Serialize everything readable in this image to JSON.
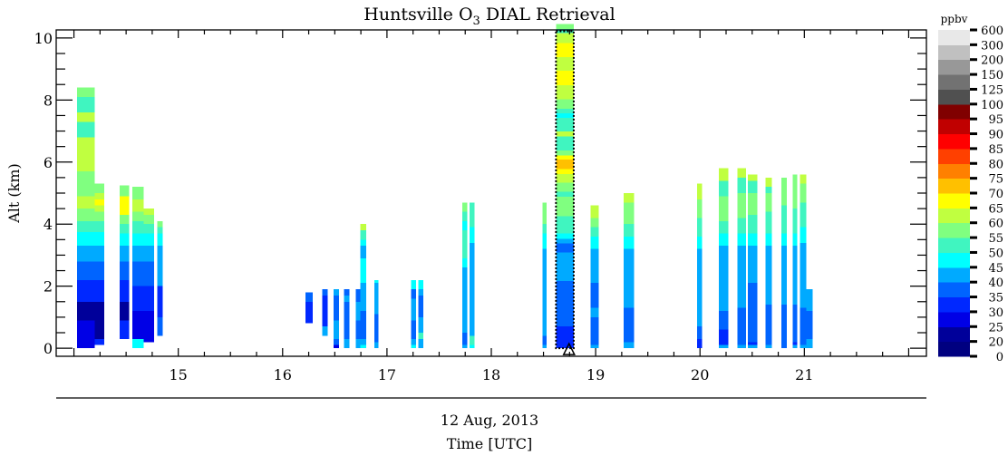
{
  "chart_data": {
    "type": "heatmap",
    "title_prefix": "Huntsville O",
    "title_sub": "3",
    "title_suffix": " DIAL Retrieval",
    "ylabel": "Alt (km)",
    "xlabel_date": "12 Aug, 2013",
    "xlabel": "Time [UTC]",
    "xlim": [
      13.83,
      22.17
    ],
    "ylim": [
      -0.26,
      10.26
    ],
    "x_ticks": [
      15,
      16,
      17,
      18,
      19,
      20,
      21
    ],
    "y_ticks": [
      0,
      2,
      4,
      6,
      8,
      10
    ],
    "colorbar": {
      "unit": "ppbv",
      "bounds": [
        0,
        20,
        25,
        30,
        35,
        40,
        45,
        50,
        55,
        60,
        65,
        70,
        75,
        80,
        85,
        90,
        95,
        100,
        125,
        150,
        200,
        300,
        600
      ],
      "colors": [
        "#000080",
        "#00009a",
        "#0000e6",
        "#0028ff",
        "#0064ff",
        "#00aaff",
        "#00ffff",
        "#40f5c0",
        "#80ff80",
        "#c0ff40",
        "#ffff00",
        "#ffc000",
        "#ff8000",
        "#ff4000",
        "#ff0000",
        "#c00000",
        "#800000",
        "#505050",
        "#727272",
        "#989898",
        "#c0c0c0",
        "#e8e8e8"
      ]
    },
    "highlight": {
      "t0": 18.62,
      "t1": 18.79,
      "marker_time": 18.745
    },
    "profiles": [
      {
        "t0": 14.03,
        "t1": 14.2,
        "bottom": 0,
        "layers": [
          [
            0.3,
            25
          ],
          [
            0.9,
            25
          ],
          [
            1.5,
            20
          ],
          [
            2.2,
            30
          ],
          [
            2.8,
            35
          ],
          [
            3.3,
            40
          ],
          [
            3.75,
            45
          ],
          [
            4.1,
            50
          ],
          [
            4.5,
            55
          ],
          [
            4.9,
            60
          ],
          [
            5.7,
            55
          ],
          [
            6.8,
            60
          ],
          [
            7.3,
            50
          ],
          [
            7.6,
            60
          ],
          [
            8.1,
            50
          ],
          [
            8.4,
            55
          ]
        ]
      },
      {
        "t0": 14.2,
        "t1": 14.29,
        "bottom": 0.1,
        "layers": [
          [
            0.3,
            30
          ],
          [
            1.5,
            20
          ],
          [
            2.2,
            30
          ],
          [
            2.8,
            35
          ],
          [
            3.3,
            40
          ],
          [
            3.75,
            45
          ],
          [
            4.1,
            50
          ],
          [
            4.4,
            55
          ],
          [
            4.6,
            60
          ],
          [
            4.8,
            65
          ],
          [
            5.0,
            60
          ],
          [
            5.3,
            55
          ]
        ]
      },
      {
        "t0": 14.44,
        "t1": 14.53,
        "bottom": 0.3,
        "layers": [
          [
            0.9,
            30
          ],
          [
            1.5,
            20
          ],
          [
            2.2,
            30
          ],
          [
            2.8,
            35
          ],
          [
            3.3,
            40
          ],
          [
            3.7,
            45
          ],
          [
            4.0,
            50
          ],
          [
            4.3,
            55
          ],
          [
            4.9,
            65
          ],
          [
            5.25,
            55
          ]
        ]
      },
      {
        "t0": 14.56,
        "t1": 14.67,
        "bottom": 0,
        "layers": [
          [
            0.3,
            45
          ],
          [
            1.2,
            25
          ],
          [
            2.0,
            30
          ],
          [
            2.8,
            35
          ],
          [
            3.3,
            40
          ],
          [
            3.7,
            45
          ],
          [
            4.1,
            50
          ],
          [
            4.4,
            55
          ],
          [
            4.8,
            60
          ],
          [
            5.2,
            55
          ]
        ]
      },
      {
        "t0": 14.67,
        "t1": 14.77,
        "bottom": 0.2,
        "layers": [
          [
            1.2,
            25
          ],
          [
            2.0,
            30
          ],
          [
            2.8,
            35
          ],
          [
            3.3,
            40
          ],
          [
            3.7,
            45
          ],
          [
            4.0,
            50
          ],
          [
            4.3,
            55
          ],
          [
            4.5,
            60
          ]
        ]
      },
      {
        "t0": 14.8,
        "t1": 14.85,
        "bottom": 0.4,
        "layers": [
          [
            1.0,
            35
          ],
          [
            2.0,
            30
          ],
          [
            3.3,
            40
          ],
          [
            3.7,
            45
          ],
          [
            3.9,
            50
          ],
          [
            4.1,
            55
          ]
        ]
      },
      {
        "t0": 16.22,
        "t1": 16.29,
        "bottom": 0.8,
        "layers": [
          [
            1.5,
            30
          ],
          [
            1.8,
            35
          ]
        ]
      },
      {
        "t0": 16.38,
        "t1": 16.43,
        "bottom": 0.4,
        "layers": [
          [
            0.7,
            40
          ],
          [
            1.7,
            30
          ],
          [
            1.9,
            35
          ]
        ]
      },
      {
        "t0": 16.49,
        "t1": 16.54,
        "bottom": 0,
        "layers": [
          [
            0.1,
            25
          ],
          [
            0.3,
            35
          ],
          [
            0.9,
            40
          ],
          [
            1.7,
            35
          ],
          [
            1.9,
            40
          ]
        ]
      },
      {
        "t0": 16.59,
        "t1": 16.64,
        "bottom": 0,
        "layers": [
          [
            0.3,
            40
          ],
          [
            1.5,
            35
          ],
          [
            1.7,
            40
          ],
          [
            1.9,
            35
          ]
        ]
      },
      {
        "t0": 16.7,
        "t1": 16.745,
        "bottom": 0,
        "layers": [
          [
            0.3,
            40
          ],
          [
            0.9,
            35
          ],
          [
            1.5,
            40
          ],
          [
            1.9,
            35
          ]
        ]
      },
      {
        "t0": 16.745,
        "t1": 16.8,
        "bottom": 0,
        "layers": [
          [
            0.1,
            45
          ],
          [
            0.3,
            40
          ],
          [
            1.2,
            35
          ],
          [
            2.1,
            40
          ],
          [
            2.9,
            45
          ],
          [
            3.3,
            40
          ],
          [
            3.5,
            45
          ],
          [
            3.8,
            50
          ],
          [
            4.0,
            60
          ]
        ]
      },
      {
        "t0": 16.88,
        "t1": 16.92,
        "bottom": 0,
        "layers": [
          [
            0.2,
            40
          ],
          [
            1.1,
            35
          ],
          [
            2.1,
            40
          ],
          [
            2.2,
            45
          ]
        ]
      },
      {
        "t0": 17.23,
        "t1": 17.28,
        "bottom": 0,
        "layers": [
          [
            0.1,
            45
          ],
          [
            0.3,
            40
          ],
          [
            0.9,
            35
          ],
          [
            1.6,
            40
          ],
          [
            1.9,
            35
          ],
          [
            2.2,
            45
          ]
        ]
      },
      {
        "t0": 17.3,
        "t1": 17.35,
        "bottom": 0,
        "layers": [
          [
            0.3,
            40
          ],
          [
            0.5,
            50
          ],
          [
            1.0,
            40
          ],
          [
            1.7,
            35
          ],
          [
            1.9,
            40
          ],
          [
            2.2,
            45
          ]
        ]
      },
      {
        "t0": 17.72,
        "t1": 17.77,
        "bottom": 0,
        "layers": [
          [
            0.1,
            40
          ],
          [
            0.5,
            35
          ],
          [
            2.6,
            40
          ],
          [
            2.9,
            45
          ],
          [
            3.8,
            50
          ],
          [
            4.1,
            45
          ],
          [
            4.4,
            50
          ],
          [
            4.7,
            55
          ]
        ]
      },
      {
        "t0": 17.79,
        "t1": 17.84,
        "bottom": 0,
        "layers": [
          [
            0.1,
            45
          ],
          [
            0.4,
            50
          ],
          [
            3.4,
            40
          ],
          [
            3.9,
            45
          ],
          [
            4.7,
            50
          ]
        ]
      },
      {
        "t0": 18.49,
        "t1": 18.53,
        "bottom": 0,
        "layers": [
          [
            0.1,
            40
          ],
          [
            0.4,
            35
          ],
          [
            3.2,
            40
          ],
          [
            3.7,
            45
          ],
          [
            4.0,
            50
          ],
          [
            4.7,
            55
          ]
        ]
      },
      {
        "t0": 18.62,
        "t1": 18.79,
        "bottom": 0,
        "layers": [
          [
            0.7,
            30
          ],
          [
            2.16,
            35
          ],
          [
            3.09,
            40
          ],
          [
            3.38,
            35
          ],
          [
            3.53,
            40
          ],
          [
            3.7,
            45
          ],
          [
            3.82,
            50
          ],
          [
            4.26,
            50
          ],
          [
            4.89,
            55
          ],
          [
            5.04,
            50
          ],
          [
            5.33,
            55
          ],
          [
            5.62,
            60
          ],
          [
            5.77,
            65
          ],
          [
            6.08,
            70
          ],
          [
            6.21,
            65
          ],
          [
            6.37,
            55
          ],
          [
            6.83,
            50
          ],
          [
            6.98,
            60
          ],
          [
            7.42,
            50
          ],
          [
            7.57,
            45
          ],
          [
            7.72,
            50
          ],
          [
            8.03,
            55
          ],
          [
            8.48,
            60
          ],
          [
            8.94,
            65
          ],
          [
            9.38,
            60
          ],
          [
            9.84,
            65
          ],
          [
            10.16,
            60
          ],
          [
            10.29,
            50
          ],
          [
            10.45,
            55
          ]
        ]
      },
      {
        "t0": 18.95,
        "t1": 19.03,
        "bottom": 0,
        "layers": [
          [
            0.1,
            40
          ],
          [
            1.0,
            35
          ],
          [
            1.3,
            40
          ],
          [
            2.1,
            35
          ],
          [
            3.2,
            40
          ],
          [
            3.6,
            45
          ],
          [
            3.9,
            50
          ],
          [
            4.2,
            55
          ],
          [
            4.6,
            60
          ]
        ]
      },
      {
        "t0": 19.27,
        "t1": 19.37,
        "bottom": 0,
        "layers": [
          [
            0.2,
            40
          ],
          [
            1.3,
            35
          ],
          [
            3.2,
            40
          ],
          [
            3.6,
            45
          ],
          [
            4.0,
            50
          ],
          [
            4.7,
            55
          ],
          [
            5.0,
            60
          ]
        ]
      },
      {
        "t0": 19.97,
        "t1": 20.02,
        "bottom": 0,
        "layers": [
          [
            0.3,
            30
          ],
          [
            0.7,
            35
          ],
          [
            3.2,
            40
          ],
          [
            3.6,
            45
          ],
          [
            4.2,
            50
          ],
          [
            4.8,
            55
          ],
          [
            5.3,
            60
          ]
        ]
      },
      {
        "t0": 20.18,
        "t1": 20.27,
        "bottom": 0,
        "layers": [
          [
            0.1,
            40
          ],
          [
            0.6,
            30
          ],
          [
            1.2,
            35
          ],
          [
            3.3,
            40
          ],
          [
            3.7,
            45
          ],
          [
            4.1,
            50
          ],
          [
            4.9,
            55
          ],
          [
            5.4,
            50
          ],
          [
            5.8,
            60
          ]
        ]
      },
      {
        "t0": 20.36,
        "t1": 20.44,
        "bottom": 0,
        "layers": [
          [
            0.1,
            40
          ],
          [
            1.3,
            35
          ],
          [
            1.6,
            40
          ],
          [
            3.3,
            40
          ],
          [
            3.7,
            45
          ],
          [
            4.2,
            50
          ],
          [
            5.0,
            55
          ],
          [
            5.5,
            50
          ],
          [
            5.8,
            60
          ]
        ]
      },
      {
        "t0": 20.46,
        "t1": 20.55,
        "bottom": 0,
        "layers": [
          [
            0.1,
            40
          ],
          [
            0.2,
            30
          ],
          [
            2.1,
            35
          ],
          [
            3.3,
            40
          ],
          [
            3.7,
            45
          ],
          [
            4.3,
            50
          ],
          [
            5.0,
            55
          ],
          [
            5.4,
            50
          ],
          [
            5.6,
            60
          ]
        ]
      },
      {
        "t0": 20.63,
        "t1": 20.69,
        "bottom": 0,
        "layers": [
          [
            0.1,
            40
          ],
          [
            1.4,
            35
          ],
          [
            3.3,
            40
          ],
          [
            3.7,
            45
          ],
          [
            4.4,
            50
          ],
          [
            5.0,
            55
          ],
          [
            5.2,
            50
          ],
          [
            5.5,
            60
          ]
        ]
      },
      {
        "t0": 20.78,
        "t1": 20.83,
        "bottom": 0,
        "layers": [
          [
            1.4,
            35
          ],
          [
            3.3,
            40
          ],
          [
            3.7,
            45
          ],
          [
            4.6,
            50
          ],
          [
            5.5,
            55
          ]
        ]
      },
      {
        "t0": 20.89,
        "t1": 20.93,
        "bottom": 0,
        "layers": [
          [
            0.1,
            40
          ],
          [
            0.2,
            30
          ],
          [
            1.4,
            35
          ],
          [
            3.3,
            40
          ],
          [
            3.7,
            45
          ],
          [
            4.5,
            50
          ],
          [
            5.6,
            55
          ]
        ]
      },
      {
        "t0": 20.96,
        "t1": 21.02,
        "bottom": 0,
        "layers": [
          [
            0.1,
            40
          ],
          [
            1.3,
            35
          ],
          [
            3.4,
            40
          ],
          [
            3.9,
            45
          ],
          [
            4.7,
            50
          ],
          [
            5.3,
            55
          ],
          [
            5.6,
            60
          ]
        ]
      },
      {
        "t0": 21.02,
        "t1": 21.08,
        "bottom": 0,
        "layers": [
          [
            0.3,
            40
          ],
          [
            1.2,
            35
          ],
          [
            1.9,
            40
          ]
        ]
      }
    ]
  }
}
